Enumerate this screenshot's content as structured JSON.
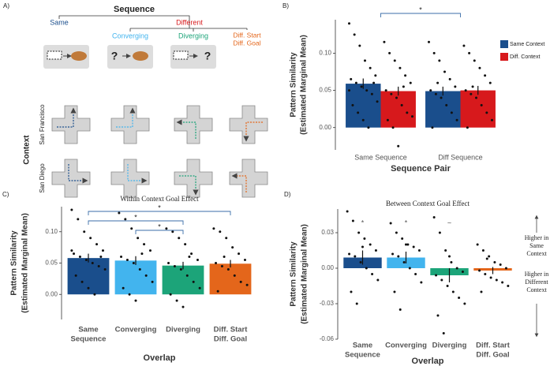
{
  "diagram": {
    "label": "A)",
    "title": "Sequence",
    "branches": [
      "Same",
      "Different"
    ],
    "conditions": [
      [
        "Converging"
      ],
      [
        "Diverging"
      ],
      [
        "Diff. Start",
        "Diff. Goal"
      ]
    ],
    "marks": [
      "?",
      "?"
    ],
    "context_title": "Context",
    "contexts": [
      "San Francisco",
      "San Diego"
    ]
  },
  "chart_data": [
    {
      "type": "grouped_bar",
      "panel": "B)",
      "x_label": "Sequence Pair",
      "y_label": [
        "Pattern Similarity",
        "(Estimated Marginal Mean)"
      ],
      "categories": [
        "Same Sequence",
        "Diff Sequence"
      ],
      "series": [
        {
          "name": "Same Context",
          "color": "#1a4e8c",
          "values": [
            0.059,
            0.049
          ],
          "errors": [
            0.007,
            0.006
          ],
          "points": [
            [
              0.14,
              0.125,
              0.11,
              0.09,
              0.08,
              0.07,
              0.065,
              0.06,
              0.055,
              0.05,
              0.045,
              0.035,
              0.03,
              0.02,
              0.01,
              0.0,
              0.06,
              0.05
            ],
            [
              0.115,
              0.1,
              0.09,
              0.075,
              0.065,
              0.055,
              0.05,
              0.045,
              0.04,
              0.03,
              0.02,
              0.01,
              0.0,
              0.06
            ]
          ]
        },
        {
          "name": "Diff. Context",
          "color": "#d7191c",
          "values": [
            0.049,
            0.05
          ],
          "errors": [
            0.006,
            0.006
          ],
          "points": [
            [
              0.115,
              0.1,
              0.09,
              0.08,
              0.07,
              0.06,
              0.05,
              0.045,
              0.04,
              0.03,
              0.02,
              0.015,
              0.01,
              0.0,
              -0.025,
              0.055
            ],
            [
              0.11,
              0.1,
              0.09,
              0.08,
              0.07,
              0.06,
              0.05,
              0.045,
              0.04,
              0.03,
              0.02,
              0.01,
              0.0,
              0.055
            ]
          ]
        }
      ],
      "ylim": [
        -0.03,
        0.145
      ],
      "yticks": [
        {
          "value": 0,
          "label": "0.00"
        },
        {
          "value": 0.05,
          "label": "0.05"
        },
        {
          "value": 0.1,
          "label": "0.10"
        }
      ],
      "significance": [
        {
          "from": 0,
          "to": 1,
          "label": "*"
        }
      ],
      "legend": "right"
    },
    {
      "type": "bar",
      "panel": "C)",
      "title": "Within Context Goal Effect",
      "x_label": "Overlap",
      "y_label": [
        "Pattern Similarity",
        "(Estimated Marginal Mean)"
      ],
      "categories": [
        [
          "Same",
          "Sequence"
        ],
        [
          "Converging"
        ],
        [
          "Diverging"
        ],
        [
          "Diff. Start",
          "Diff. Goal"
        ]
      ],
      "colors": [
        "#1a4e8c",
        "#42b4ee",
        "#1ca479",
        "#e4661b"
      ],
      "values": [
        0.058,
        0.054,
        0.046,
        0.049
      ],
      "errors": [
        0.007,
        0.007,
        0.006,
        0.006
      ],
      "points": [
        [
          0.135,
          0.12,
          0.1,
          0.09,
          0.08,
          0.07,
          0.065,
          0.06,
          0.055,
          0.05,
          0.045,
          0.04,
          0.03,
          0.02,
          0.01,
          0.0,
          0.06,
          0.07
        ],
        [
          0.13,
          0.12,
          0.105,
          0.09,
          0.08,
          0.07,
          0.06,
          0.055,
          0.05,
          0.04,
          0.03,
          0.02,
          0.01,
          0.0,
          -0.01,
          0.065
        ],
        [
          0.105,
          0.1,
          0.09,
          0.08,
          0.065,
          0.055,
          0.05,
          0.045,
          0.04,
          0.03,
          0.02,
          0.01,
          0.0,
          -0.01,
          -0.02,
          0.06
        ],
        [
          0.105,
          0.1,
          0.09,
          0.075,
          0.065,
          0.055,
          0.05,
          0.045,
          0.04,
          0.03,
          0.02,
          0.015,
          0.005,
          0.06
        ]
      ],
      "ylim": [
        -0.04,
        0.14
      ],
      "yticks": [
        {
          "value": 0,
          "label": "0.00"
        },
        {
          "value": 0.05,
          "label": "0.05"
        },
        {
          "value": 0.1,
          "label": "0.10"
        }
      ],
      "significance": [
        {
          "from": 0,
          "to": 3,
          "label": "*"
        },
        {
          "from": 0,
          "to": 2,
          "label": "*"
        },
        {
          "from": 1,
          "to": 2,
          "label": "*"
        }
      ]
    },
    {
      "type": "bar",
      "panel": "D)",
      "title": "Between Context Goal Effect",
      "x_label": "Overlap",
      "y_label": [
        "Pattern Similarity",
        "(Estimated Marginal Mean)"
      ],
      "categories": [
        [
          "Same",
          "Sequence"
        ],
        [
          "Converging"
        ],
        [
          "Diverging"
        ],
        [
          "Diff. Start",
          "Diff. Goal"
        ]
      ],
      "colors": [
        "#1a4e8c",
        "#42b4ee",
        "#1ca479",
        "#e4661b"
      ],
      "values": [
        0.009,
        0.009,
        -0.006,
        -0.002
      ],
      "errors": [
        0.006,
        0.005,
        0.006,
        0.003
      ],
      "points": [
        [
          0.048,
          0.04,
          0.03,
          0.025,
          0.02,
          0.015,
          0.012,
          0.01,
          0.005,
          0.0,
          -0.005,
          -0.01,
          -0.02,
          -0.03,
          0.018
        ],
        [
          0.038,
          0.03,
          0.025,
          0.02,
          0.018,
          0.015,
          0.012,
          0.01,
          0.005,
          0.0,
          -0.005,
          -0.012,
          -0.02,
          -0.035,
          0.02
        ],
        [
          0.043,
          0.03,
          0.015,
          0.005,
          0.0,
          -0.003,
          -0.006,
          -0.01,
          -0.015,
          -0.02,
          -0.025,
          -0.03,
          -0.04,
          -0.055,
          0.01
        ],
        [
          0.02,
          0.015,
          0.01,
          0.005,
          0.003,
          0.0,
          -0.002,
          -0.005,
          -0.008,
          -0.01,
          -0.012,
          -0.015,
          -0.02,
          0.008
        ]
      ],
      "bar_labels": [
        "*",
        "*",
        "~",
        null
      ],
      "ylim": [
        -0.06,
        0.05
      ],
      "yticks": [
        {
          "value": 0.03,
          "label": "0.03"
        },
        {
          "value": 0,
          "label": "0.00"
        },
        {
          "value": -0.03,
          "label": "-0.03"
        },
        {
          "value": -0.06,
          "label": "-0.06"
        }
      ],
      "annotations": [
        [
          "Higher in",
          "Same",
          "Context"
        ],
        [
          "Higher in",
          "Different",
          "Context"
        ]
      ]
    }
  ]
}
